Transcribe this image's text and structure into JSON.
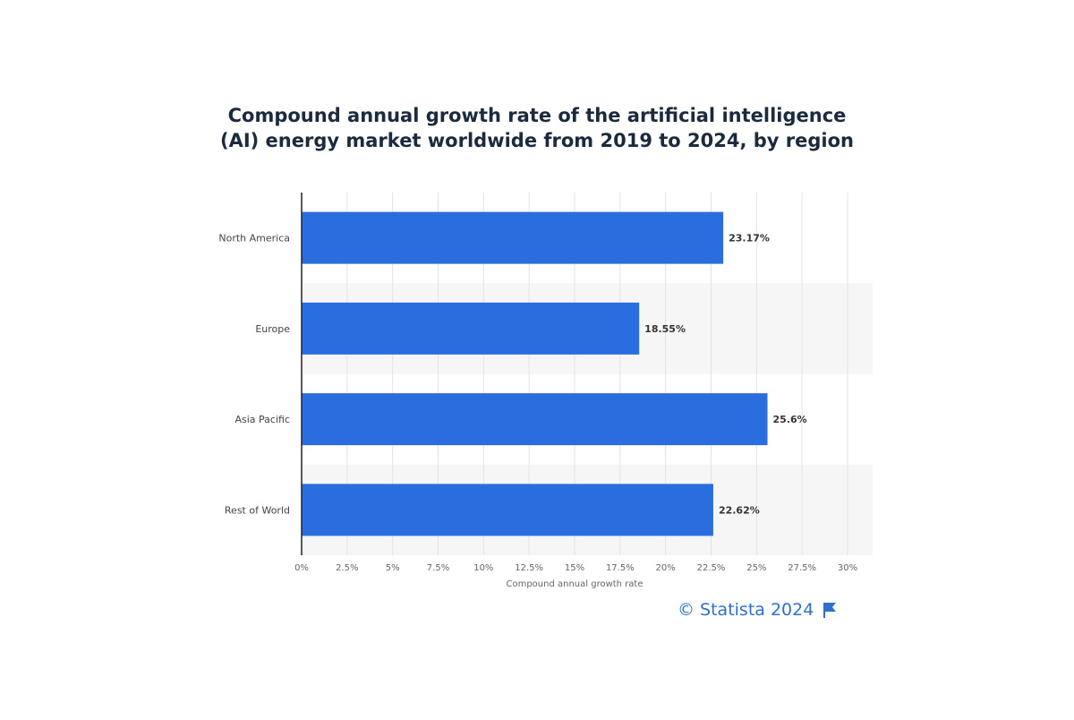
{
  "title_lines": [
    "Compound annual growth rate of the artificial intelligence",
    "(AI) energy market worldwide from 2019 to 2024, by region"
  ],
  "footer": {
    "source": "© Statista 2024",
    "icon": "flag-icon"
  },
  "colors": {
    "bar": "#2a6ddf",
    "title": "#1c2a3d",
    "footer": "#2f6fc9",
    "band": "#f6f6f6",
    "grid": "#e3e3e3"
  },
  "chart_data": {
    "type": "bar",
    "orientation": "horizontal",
    "title": "Compound annual growth rate of the artificial intelligence (AI) energy market worldwide from 2019 to 2024, by region",
    "categories": [
      "North America",
      "Europe",
      "Asia Pacific",
      "Rest of World"
    ],
    "values": [
      23.17,
      18.55,
      25.6,
      22.62
    ],
    "value_labels": [
      "23.17%",
      "18.55%",
      "25.6%",
      "22.62%"
    ],
    "xlabel": "Compound annual growth rate",
    "ylabel": "",
    "xlim": [
      0,
      30
    ],
    "ticks": [
      0,
      2.5,
      5,
      7.5,
      10,
      12.5,
      15,
      17.5,
      20,
      22.5,
      25,
      27.5,
      30
    ],
    "tick_labels": [
      "0%",
      "2.5%",
      "5%",
      "7.5%",
      "10%",
      "12.5%",
      "15%",
      "17.5%",
      "20%",
      "22.5%",
      "25%",
      "27.5%",
      "30%"
    ],
    "grid": true,
    "legend": "none"
  }
}
